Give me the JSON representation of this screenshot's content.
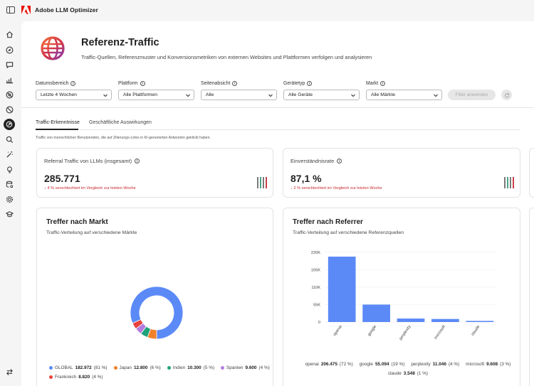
{
  "app": {
    "title": "Adobe LLM Optimizer"
  },
  "colors": {
    "brand": "#eb1000",
    "accent": "#5b8af7",
    "negative": "#c9252d"
  },
  "rail": {
    "items": [
      {
        "icon": "home-icon"
      },
      {
        "icon": "compass-icon"
      },
      {
        "icon": "chat-icon"
      },
      {
        "icon": "bar-chart-icon"
      },
      {
        "icon": "no-target-icon"
      },
      {
        "icon": "blocked-icon"
      },
      {
        "icon": "referral-traffic-icon",
        "active": true
      },
      {
        "icon": "search-icon"
      },
      {
        "icon": "magic-wand-icon"
      },
      {
        "icon": "lightbulb-icon"
      },
      {
        "icon": "data-settings-icon"
      },
      {
        "icon": "gear-icon"
      },
      {
        "icon": "graduation-cap-icon"
      }
    ],
    "bottom_icon": "swap-icon"
  },
  "page": {
    "title": "Referenz-Traffic",
    "subtitle": "Traffic-Quellen, Referenzmuster und Konversionsmetriken von externen Websites und Plattformen verfolgen und analysieren"
  },
  "filters": [
    {
      "label": "Datumsbereich",
      "value": "Letzte 4 Wochen"
    },
    {
      "label": "Plattform",
      "value": "Alle Plattformen"
    },
    {
      "label": "Seitenabsicht",
      "value": "Alle"
    },
    {
      "label": "Gerätetyp",
      "value": "Alle Geräte"
    },
    {
      "label": "Markt",
      "value": "Alle Märkte"
    }
  ],
  "apply_button": "Filter anwenden",
  "tabs": [
    {
      "label": "Traffic-Erkenntnisse",
      "active": true
    },
    {
      "label": "Geschäftliche Auswirkungen",
      "active": false
    }
  ],
  "note": "Traffic von menschlichen Benutzenden, die auf Zitierungs-Links in KI-generierten Antworten geklickt haben.",
  "kpis": [
    {
      "title": "Referral Traffic von LLMs (insgesamt)",
      "value": "285.771",
      "change": "↓ 4 % verschlechtert im Vergleich zur letzten Woche"
    },
    {
      "title": "Einverständnisrate",
      "value": "87,1 %",
      "change": "↓ 2 % verschlechtert im Vergleich zur letzten Woche"
    }
  ],
  "market_chart": {
    "title": "Treffer nach Markt",
    "subtitle": "Traffic-Verteilung auf verschiedene Märkte",
    "legend": [
      {
        "name": "GLOBAL",
        "value": "182.972",
        "pct": "(81 %)"
      },
      {
        "name": "Japan",
        "value": "12.800",
        "pct": "(6 %)"
      },
      {
        "name": "Indien",
        "value": "10.300",
        "pct": "(5 %)"
      },
      {
        "name": "Spanien",
        "value": "9.600",
        "pct": "(4 %)"
      },
      {
        "name": "Frankreich",
        "value": "8.820",
        "pct": "(4 %)"
      }
    ]
  },
  "referrer_chart": {
    "title": "Treffer nach Referrer",
    "subtitle": "Traffic-Verteilung auf verschiedene Referenzquellen",
    "legend": [
      {
        "name": "openai",
        "value": "206.475",
        "pct": "(72 %)"
      },
      {
        "name": "google",
        "value": "55.094",
        "pct": "(19 %)"
      },
      {
        "name": "perplexity",
        "value": "11.046",
        "pct": "(4 %)"
      },
      {
        "name": "microsoft",
        "value": "9.608",
        "pct": "(3 %)"
      },
      {
        "name": "claude",
        "value": "3.548",
        "pct": "(1 %)"
      }
    ]
  },
  "chart_data": [
    {
      "type": "pie",
      "title": "Treffer nach Markt",
      "donut": true,
      "categories": [
        "GLOBAL",
        "Japan",
        "Indien",
        "Spanien",
        "Frankreich"
      ],
      "values": [
        182972,
        12800,
        10300,
        9600,
        8820
      ],
      "colors": [
        "#5b8af7",
        "#f0812a",
        "#1fa37a",
        "#b57cdf",
        "#e8423f"
      ]
    },
    {
      "type": "bar",
      "title": "Treffer nach Referrer",
      "categories": [
        "openai",
        "google",
        "perplexity",
        "microsoft",
        "claude"
      ],
      "values": [
        206475,
        55094,
        11046,
        9608,
        3548
      ],
      "ylim": [
        0,
        220000
      ],
      "yticks": [
        "0",
        "55K",
        "110K",
        "165K",
        "220K"
      ],
      "ytick_values": [
        0,
        55000,
        110000,
        165000,
        220000
      ],
      "color": "#5b8af7"
    }
  ]
}
